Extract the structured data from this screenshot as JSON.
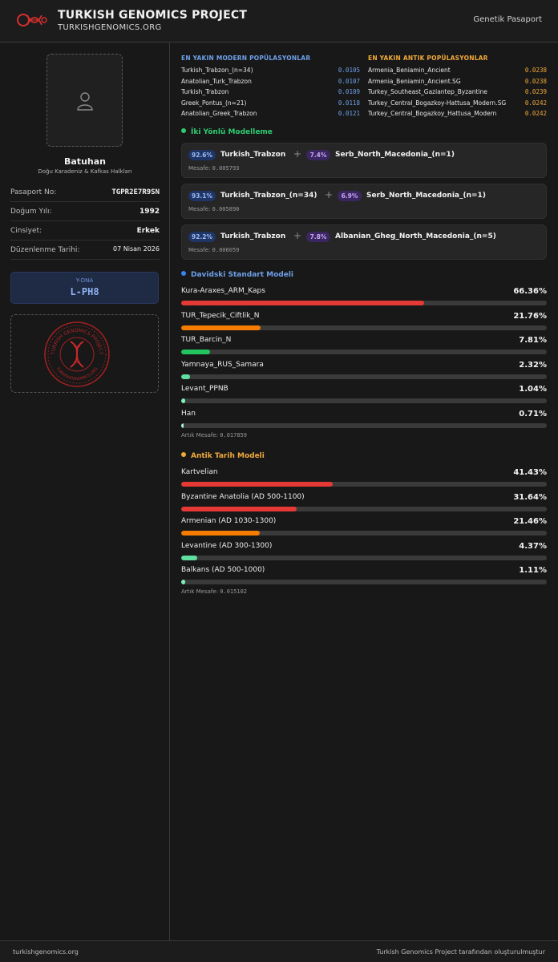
{
  "header": {
    "title": "TURKISH GENOMICS PROJECT",
    "subtitle": "TURKISHGENOMICS.ORG",
    "right_label": "Genetik Pasaport"
  },
  "profile": {
    "name": "Batuhan",
    "group": "Doğu Karadeniz & Kafkas Halkları",
    "fields": [
      {
        "label": "Pasaport No:",
        "value": "TGPR2E7R9SN"
      },
      {
        "label": "Doğum Yılı:",
        "value": "1992"
      },
      {
        "label": "Cinsiyet:",
        "value": "Erkek"
      },
      {
        "label": "Düzenlenme Tarihi:",
        "value": "07 Nisan 2026"
      }
    ],
    "ydna_label": "Y-DNA",
    "ydna_value": "L-PH8",
    "seal_text_top": "TURKISH GENOMICS PROJECT",
    "seal_text_bottom": "TURKISHGENOMICS.ORG"
  },
  "modern": {
    "title": "EN YAKIN MODERN POPÜLASYONLAR",
    "color": "#6ea0e8",
    "rows": [
      {
        "name": "Turkish_Trabzon_(n=34)",
        "dist": "0.0105"
      },
      {
        "name": "Anatolian_Turk_Trabzon",
        "dist": "0.0107"
      },
      {
        "name": "Turkish_Trabzon",
        "dist": "0.0109"
      },
      {
        "name": "Greek_Pontus_(n=21)",
        "dist": "0.0118"
      },
      {
        "name": "Anatolian_Greek_Trabzon",
        "dist": "0.0121"
      }
    ]
  },
  "ancient": {
    "title": "EN YAKIN ANTIK POPÜLASYONLAR",
    "color": "#f0a93a",
    "rows": [
      {
        "name": "Armenia_Beniamin_Ancient",
        "dist": "0.0238"
      },
      {
        "name": "Armenia_Beniamin_Ancient.SG",
        "dist": "0.0238"
      },
      {
        "name": "Turkey_Southeast_Gaziantep_Byzantine",
        "dist": "0.0239"
      },
      {
        "name": "Turkey_Central_Bogazkoy-Hattusa_Modern.SG",
        "dist": "0.0242"
      },
      {
        "name": "Turkey_Central_Bogazkoy_Hattusa_Modern",
        "dist": "0.0242"
      }
    ]
  },
  "two_way": {
    "title": "İki Yönlü Modelleme",
    "color": "#2ecc71",
    "dist_prefix": "Mesafe:",
    "models": [
      {
        "p1": "92.6%",
        "pop1": "Turkish_Trabzon",
        "p2": "7.4%",
        "pop2": "Serb_North_Macedonia_(n=1)",
        "dist": "0.005793"
      },
      {
        "p1": "93.1%",
        "pop1": "Turkish_Trabzon_(n=34)",
        "p2": "6.9%",
        "pop2": "Serb_North_Macedonia_(n=1)",
        "dist": "0.005890"
      },
      {
        "p1": "92.2%",
        "pop1": "Turkish_Trabzon",
        "p2": "7.8%",
        "pop2": "Albanian_Gheg_North_Macedonia_(n=5)",
        "dist": "0.006059"
      }
    ]
  },
  "davidski": {
    "title": "Davidski Standart Modeli",
    "color": "#3b82f6",
    "residual_label": "Artık Mesafe:",
    "residual_value": "0.017859",
    "items": [
      {
        "label": "Kura-Araxes_ARM_Kaps",
        "value": "66.36%",
        "pct": 66.36,
        "color": "#e53935"
      },
      {
        "label": "TUR_Tepecik_Ciftlik_N",
        "value": "21.76%",
        "pct": 21.76,
        "color": "#f57c00"
      },
      {
        "label": "TUR_Barcin_N",
        "value": "7.81%",
        "pct": 7.81,
        "color": "#22c55e"
      },
      {
        "label": "Yamnaya_RUS_Samara",
        "value": "2.32%",
        "pct": 2.32,
        "color": "#5fe0a0"
      },
      {
        "label": "Levant_PPNB",
        "value": "1.04%",
        "pct": 1.04,
        "color": "#7ef0b8"
      },
      {
        "label": "Han",
        "value": "0.71%",
        "pct": 0.71,
        "color": "#a8f5cf"
      }
    ]
  },
  "ancient_model": {
    "title": "Antik Tarih Modeli",
    "color": "#f0a93a",
    "residual_label": "Artık Mesafe:",
    "residual_value": "0.015102",
    "items": [
      {
        "label": "Kartvelian",
        "value": "41.43%",
        "pct": 41.43,
        "color": "#e53935"
      },
      {
        "label": "Byzantine Anatolia (AD 500-1100)",
        "value": "31.64%",
        "pct": 31.64,
        "color": "#e53935"
      },
      {
        "label": "Armenian (AD 1030-1300)",
        "value": "21.46%",
        "pct": 21.46,
        "color": "#f57c00"
      },
      {
        "label": "Levantine (AD 300-1300)",
        "value": "4.37%",
        "pct": 4.37,
        "color": "#5fe0a0"
      },
      {
        "label": "Balkans (AD 500-1000)",
        "value": "1.11%",
        "pct": 1.11,
        "color": "#7ef0b8"
      }
    ]
  },
  "footer": {
    "left": "turkishgenomics.org",
    "right": "Turkish Genomics Project tarafından oluşturulmuştur"
  }
}
